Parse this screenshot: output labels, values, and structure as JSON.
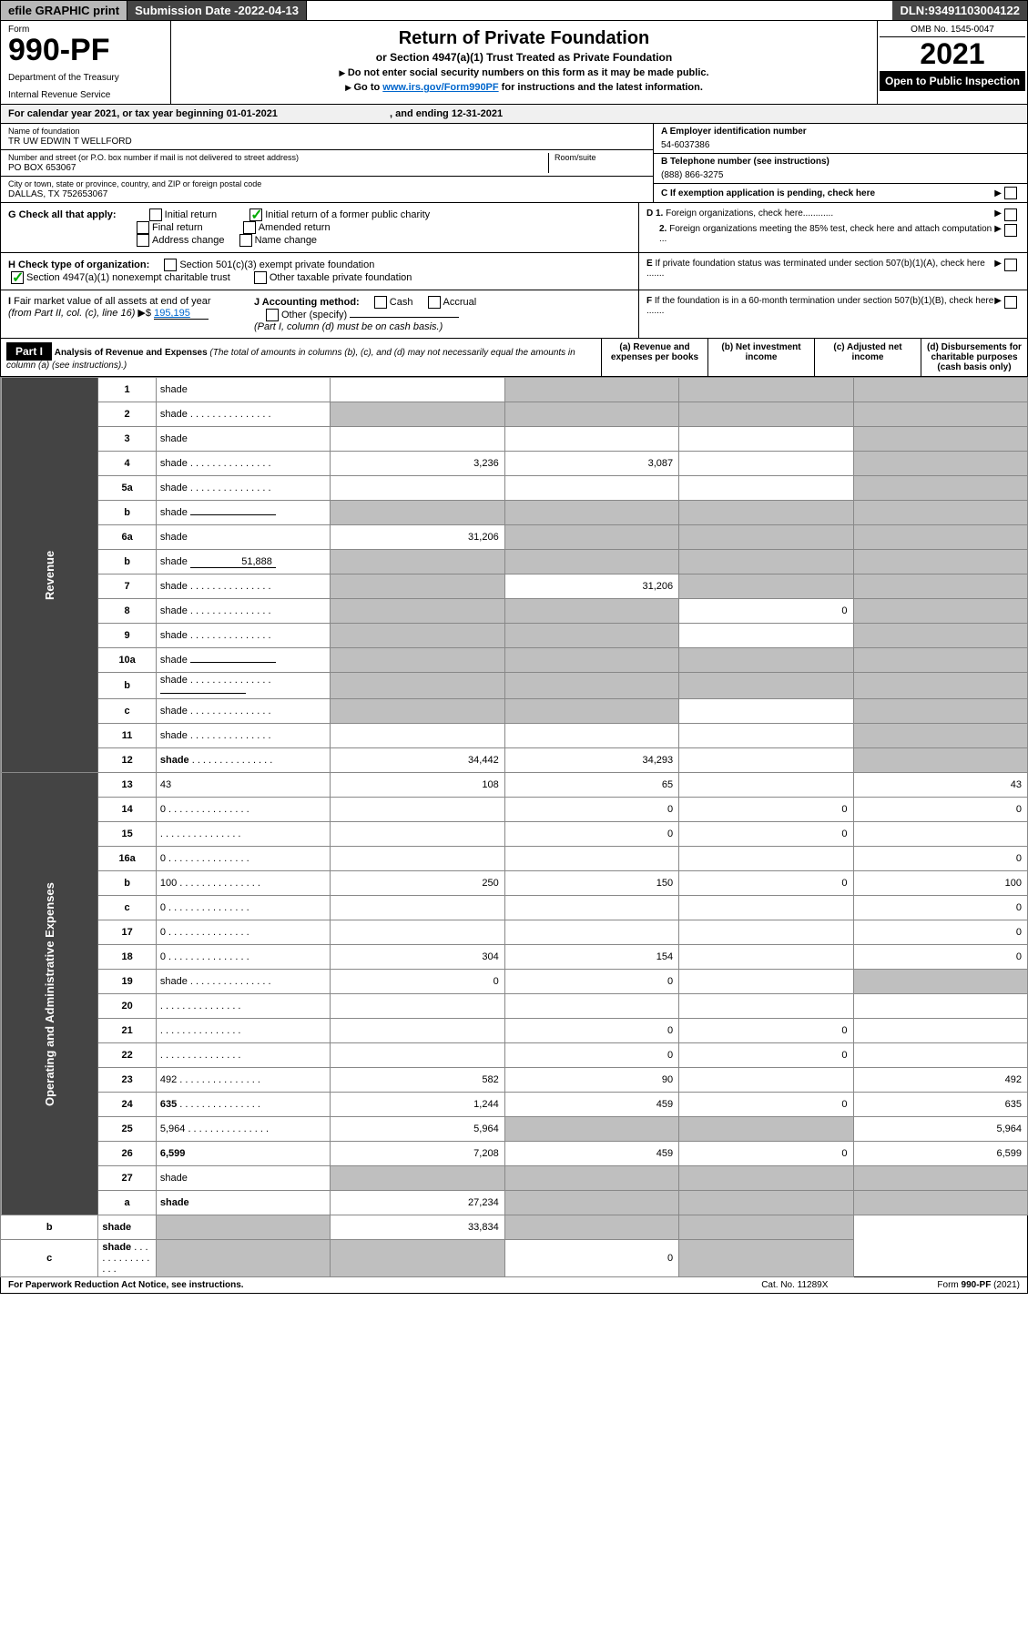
{
  "topbar": {
    "efile": "efile GRAPHIC print",
    "subdate_label": "Submission Date - ",
    "subdate": "2022-04-13",
    "dln_label": "DLN: ",
    "dln": "93491103004122"
  },
  "hdr": {
    "form": "Form",
    "formnum": "990-PF",
    "dept": "Department of the Treasury",
    "irs": "Internal Revenue Service",
    "title": "Return of Private Foundation",
    "subtitle": "or Section 4947(a)(1) Trust Treated as Private Foundation",
    "note1": "Do not enter social security numbers on this form as it may be made public.",
    "note2_a": "Go to ",
    "note2_link": "www.irs.gov/Form990PF",
    "note2_b": " for instructions and the latest information.",
    "omb": "OMB No. 1545-0047",
    "year": "2021",
    "open": "Open to Public Inspection"
  },
  "calrow": {
    "a": "For calendar year 2021, or tax year beginning ",
    "begin": "01-01-2021",
    "b": ", and ending ",
    "end": "12-31-2021"
  },
  "id": {
    "name_lbl": "Name of foundation",
    "name": "TR UW EDWIN T WELLFORD",
    "addr_lbl": "Number and street (or P.O. box number if mail is not delivered to street address)",
    "room_lbl": "Room/suite",
    "addr": "PO BOX 653067",
    "city_lbl": "City or town, state or province, country, and ZIP or foreign postal code",
    "city": "DALLAS, TX  752653067",
    "ein_lbl": "A Employer identification number",
    "ein": "54-6037386",
    "tel_lbl": "B Telephone number (see instructions)",
    "tel": "(888) 866-3275",
    "c": "C If exemption application is pending, check here",
    "g_lbl": "G Check all that apply:",
    "g1": "Initial return",
    "g2": "Initial return of a former public charity",
    "g3": "Final return",
    "g4": "Amended return",
    "g5": "Address change",
    "g6": "Name change",
    "d1": "D 1. Foreign organizations, check here............",
    "d2": "2. Foreign organizations meeting the 85% test, check here and attach computation ...",
    "h_lbl": "H Check type of organization:",
    "h1": "Section 501(c)(3) exempt private foundation",
    "h2": "Section 4947(a)(1) nonexempt charitable trust",
    "h3": "Other taxable private foundation",
    "e": "E If private foundation status was terminated under section 507(b)(1)(A), check here .......",
    "i_lbl": "I Fair market value of all assets at end of year (from Part II, col. (c), line 16)",
    "i_val": "195,195",
    "j_lbl": "J Accounting method:",
    "j1": "Cash",
    "j2": "Accrual",
    "j3": "Other (specify)",
    "j_note": "(Part I, column (d) must be on cash basis.)",
    "f": "F If the foundation is in a 60-month termination under section 507(b)(1)(B), check here ......."
  },
  "part1": {
    "label": "Part I",
    "title": "Analysis of Revenue and Expenses",
    "paren": "(The total of amounts in columns (b), (c), and (d) may not necessarily equal the amounts in column (a) (see instructions).)",
    "cols": {
      "a": "(a)   Revenue and expenses per books",
      "b": "(b)   Net investment income",
      "c": "(c)   Adjusted net income",
      "d": "(d)   Disbursements for charitable purposes (cash basis only)"
    }
  },
  "side": {
    "rev": "Revenue",
    "exp": "Operating and Administrative Expenses"
  },
  "rows": [
    {
      "n": "1",
      "d": "shade",
      "a": "",
      "b": "shade",
      "c": "shade"
    },
    {
      "n": "2",
      "d": "shade",
      "dots": 1,
      "a": "shade",
      "b": "shade",
      "c": "shade"
    },
    {
      "n": "3",
      "d": "shade",
      "a": "",
      "b": "",
      "c": ""
    },
    {
      "n": "4",
      "d": "shade",
      "dots": 1,
      "a": "3,236",
      "b": "3,087",
      "c": ""
    },
    {
      "n": "5a",
      "d": "shade",
      "dots": 1,
      "a": "",
      "b": "",
      "c": ""
    },
    {
      "n": "b",
      "d": "shade",
      "ibox": "",
      "a": "shade",
      "b": "shade",
      "c": "shade"
    },
    {
      "n": "6a",
      "d": "shade",
      "a": "31,206",
      "b": "shade",
      "c": "shade"
    },
    {
      "n": "b",
      "d": "shade",
      "ibox": "51,888",
      "a": "shade",
      "b": "shade",
      "c": "shade"
    },
    {
      "n": "7",
      "d": "shade",
      "dots": 1,
      "a": "shade",
      "b": "31,206",
      "c": "shade"
    },
    {
      "n": "8",
      "d": "shade",
      "dots": 1,
      "a": "shade",
      "b": "shade",
      "c": "0"
    },
    {
      "n": "9",
      "d": "shade",
      "dots": 1,
      "a": "shade",
      "b": "shade",
      "c": ""
    },
    {
      "n": "10a",
      "d": "shade",
      "ibox": "",
      "a": "shade",
      "b": "shade",
      "c": "shade"
    },
    {
      "n": "b",
      "d": "shade",
      "dots": 1,
      "ibox": "",
      "a": "shade",
      "b": "shade",
      "c": "shade"
    },
    {
      "n": "c",
      "d": "shade",
      "dots": 1,
      "a": "shade",
      "b": "shade",
      "c": ""
    },
    {
      "n": "11",
      "d": "shade",
      "dots": 1,
      "a": "",
      "b": "",
      "c": ""
    },
    {
      "n": "12",
      "d": "shade",
      "bold": 1,
      "dots": 1,
      "a": "34,442",
      "b": "34,293",
      "c": ""
    },
    {
      "n": "13",
      "d": "43",
      "a": "108",
      "b": "65",
      "c": ""
    },
    {
      "n": "14",
      "d": "0",
      "dots": 1,
      "a": "",
      "b": "0",
      "c": "0"
    },
    {
      "n": "15",
      "d": "",
      "dots": 1,
      "a": "",
      "b": "0",
      "c": "0"
    },
    {
      "n": "16a",
      "d": "0",
      "dots": 1,
      "a": "",
      "b": "",
      "c": ""
    },
    {
      "n": "b",
      "d": "100",
      "dots": 1,
      "a": "250",
      "b": "150",
      "c": "0"
    },
    {
      "n": "c",
      "d": "0",
      "dots": 1,
      "a": "",
      "b": "",
      "c": ""
    },
    {
      "n": "17",
      "d": "0",
      "dots": 1,
      "a": "",
      "b": "",
      "c": ""
    },
    {
      "n": "18",
      "d": "0",
      "dots": 1,
      "a": "304",
      "b": "154",
      "c": ""
    },
    {
      "n": "19",
      "d": "shade",
      "dots": 1,
      "a": "0",
      "b": "0",
      "c": ""
    },
    {
      "n": "20",
      "d": "",
      "dots": 1,
      "a": "",
      "b": "",
      "c": ""
    },
    {
      "n": "21",
      "d": "",
      "dots": 1,
      "a": "",
      "b": "0",
      "c": "0"
    },
    {
      "n": "22",
      "d": "",
      "dots": 1,
      "a": "",
      "b": "0",
      "c": "0"
    },
    {
      "n": "23",
      "d": "492",
      "dots": 1,
      "a": "582",
      "b": "90",
      "c": ""
    },
    {
      "n": "24",
      "d": "635",
      "bold": 1,
      "dots": 1,
      "a": "1,244",
      "b": "459",
      "c": "0"
    },
    {
      "n": "25",
      "d": "5,964",
      "dots": 1,
      "a": "5,964",
      "b": "shade",
      "c": "shade"
    },
    {
      "n": "26",
      "d": "6,599",
      "bold": 1,
      "a": "7,208",
      "b": "459",
      "c": "0"
    },
    {
      "n": "27",
      "d": "shade",
      "a": "shade",
      "b": "shade",
      "c": "shade"
    },
    {
      "n": "a",
      "d": "shade",
      "bold": 1,
      "a": "27,234",
      "b": "shade",
      "c": "shade"
    },
    {
      "n": "b",
      "d": "shade",
      "bold": 1,
      "a": "shade",
      "b": "33,834",
      "c": "shade"
    },
    {
      "n": "c",
      "d": "shade",
      "bold": 1,
      "dots": 1,
      "a": "shade",
      "b": "shade",
      "c": "0"
    }
  ],
  "footer": {
    "l": "For Paperwork Reduction Act Notice, see instructions.",
    "m": "Cat. No. 11289X",
    "r": "Form 990-PF (2021)"
  }
}
